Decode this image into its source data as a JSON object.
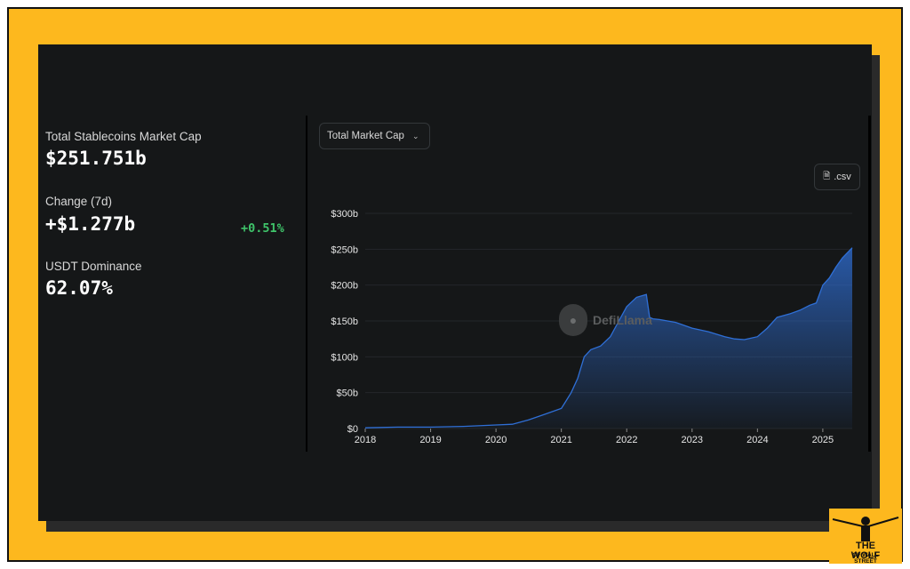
{
  "stats": {
    "market_cap_label": "Total Stablecoins Market Cap",
    "market_cap_value": "$251.751b",
    "change_label": "Change (7d)",
    "change_value": "+$1.277b",
    "change_pct": "+0.51%",
    "dominance_label": "USDT Dominance",
    "dominance_value": "62.07%"
  },
  "controls": {
    "metric_select": "Total Market Cap",
    "csv_button": ".csv"
  },
  "watermark": "DefiLlama",
  "branding": {
    "line1": "THE WOLF",
    "line2": "OF WALL STREET"
  },
  "colors": {
    "frame": "#fdb81e",
    "card": "#151718",
    "line": "#2f6fd6",
    "positive": "#3fc46a"
  },
  "chart_data": {
    "type": "area",
    "title": "",
    "xlabel": "",
    "ylabel": "",
    "ylim": [
      0,
      300
    ],
    "xlim": [
      2018.0,
      2025.45
    ],
    "y_ticks": [
      0,
      50,
      100,
      150,
      200,
      250,
      300
    ],
    "y_tick_labels": [
      "$0",
      "$50b",
      "$100b",
      "$150b",
      "$200b",
      "$250b",
      "$300b"
    ],
    "x_ticks": [
      2018,
      2019,
      2020,
      2021,
      2022,
      2023,
      2024,
      2025
    ],
    "x_tick_labels": [
      "2018",
      "2019",
      "2020",
      "2021",
      "2022",
      "2023",
      "2024",
      "2025"
    ],
    "grid": true,
    "unit": "USD billions",
    "series": [
      {
        "x": [
          2018.0,
          2018.5,
          2019.0,
          2019.5,
          2020.0,
          2020.25,
          2020.5,
          2020.75,
          2021.0,
          2021.15,
          2021.25,
          2021.35,
          2021.45,
          2021.6,
          2021.75,
          2021.85,
          2022.0,
          2022.15,
          2022.3,
          2022.35,
          2022.4,
          2022.5,
          2022.75,
          2023.0,
          2023.25,
          2023.5,
          2023.65,
          2023.8,
          2024.0,
          2024.15,
          2024.3,
          2024.5,
          2024.65,
          2024.8,
          2024.9,
          2025.0,
          2025.1,
          2025.2,
          2025.3,
          2025.45
        ],
        "y": [
          1,
          2,
          2,
          3,
          5,
          6,
          12,
          20,
          28,
          50,
          70,
          100,
          110,
          115,
          128,
          145,
          170,
          183,
          187,
          155,
          153,
          152,
          148,
          140,
          135,
          128,
          125,
          124,
          128,
          140,
          155,
          160,
          165,
          172,
          175,
          200,
          210,
          225,
          238,
          252
        ]
      }
    ]
  }
}
